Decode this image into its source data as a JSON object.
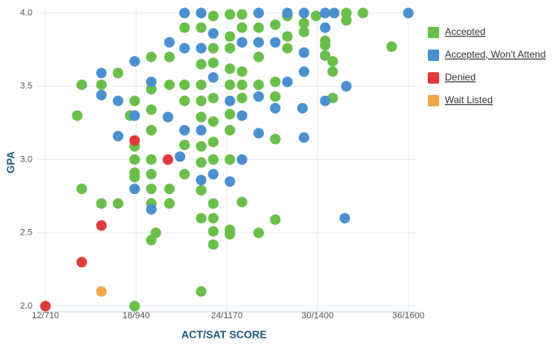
{
  "chart_data": {
    "type": "scatter",
    "x_label": "ACT/SAT SCORE",
    "y_label": "GPA",
    "xlim": [
      12,
      36
    ],
    "ylim": [
      2,
      4
    ],
    "xticks": [
      {
        "value": 12,
        "label": "12/710"
      },
      {
        "value": 18,
        "label": "18/940"
      },
      {
        "value": 24,
        "label": "24/1170"
      },
      {
        "value": 30,
        "label": "30/1400"
      },
      {
        "value": 36,
        "label": "36/1600"
      }
    ],
    "yticks": [
      {
        "value": 2,
        "label": "2.0"
      },
      2.5,
      {
        "value": 3,
        "label": "3.0"
      },
      3.5,
      {
        "value": 4,
        "label": "4.0"
      }
    ],
    "grid": true,
    "legend": "right",
    "series": [
      {
        "name": "Accepted",
        "color": "#6abf4b",
        "x": [
          34.9,
          33,
          31.9,
          31.9,
          31,
          31,
          31,
          30.5,
          30.5,
          30.5,
          29.9,
          29.1,
          29.1,
          28,
          28,
          28,
          27.2,
          27.2,
          27.2,
          27.2,
          27.2,
          26.1,
          26.1,
          26.1,
          26.1,
          25,
          25,
          25,
          25,
          25,
          25,
          24.2,
          24.2,
          24.2,
          24.2,
          24.2,
          24.2,
          24.2,
          24.2,
          24.2,
          24.2,
          23.1,
          23.1,
          23.1,
          23.1,
          23.1,
          23.1,
          23.1,
          23.1,
          23.1,
          23.1,
          23.1,
          22.3,
          22.3,
          22.3,
          22.3,
          22.3,
          22.3,
          22.3,
          22.3,
          22.3,
          22.3,
          21.2,
          21.2,
          21.2,
          21.2,
          21.2,
          20.2,
          20.2,
          20.2,
          20.2,
          19,
          19,
          19,
          19,
          19,
          19,
          19,
          19,
          19,
          19.3,
          17.9,
          17.9,
          17.9,
          17.9,
          17.9,
          17.9,
          17.6,
          16.8,
          16.8,
          15.7,
          15.7,
          14.4,
          14.4,
          14.1
        ],
        "values": [
          3.77,
          4,
          4,
          3.95,
          3.67,
          3.6,
          3.42,
          3.78,
          3.71,
          3.81,
          3.98,
          3.87,
          3.93,
          3.84,
          3.76,
          3.98,
          3.92,
          3.53,
          3.43,
          3.14,
          2.59,
          3.9,
          3.7,
          3.51,
          2.5,
          3.99,
          3.9,
          3.6,
          3.51,
          3.42,
          2.71,
          3.99,
          3.84,
          3.76,
          3.62,
          3.51,
          3.31,
          3.2,
          3,
          2.52,
          2.49,
          3.98,
          3.76,
          3.66,
          3.42,
          3.26,
          3.12,
          3,
          2.7,
          2.6,
          2.51,
          2.42,
          3.9,
          3.65,
          3.51,
          3.4,
          3.29,
          3.09,
          2.98,
          2.79,
          2.6,
          2.1,
          3.9,
          3.51,
          3.4,
          3.1,
          2.9,
          3.7,
          3.51,
          2.8,
          2.7,
          3.7,
          3.48,
          3.34,
          3.2,
          3,
          2.9,
          2.8,
          2.7,
          2.45,
          2.5,
          3.4,
          3.09,
          3,
          2.91,
          2.88,
          2,
          3.3,
          3.59,
          2.7,
          3.51,
          2.7,
          3.51,
          2.8,
          3.3
        ]
      },
      {
        "name": "Accepted, Won't Attend",
        "color": "#4a90d0",
        "x": [
          36,
          31.8,
          31.9,
          30.5,
          29.1,
          29,
          29.1,
          29.1,
          28,
          27.2,
          27.2,
          26.1,
          26.1,
          26.1,
          26.1,
          25,
          25,
          25,
          24.2,
          24.2,
          23.1,
          23.1,
          23.1,
          22.3,
          22.3,
          22.3,
          22.3,
          21.2,
          21.2,
          21.2,
          20.9,
          20.2,
          20.1,
          19,
          19,
          17.9,
          17.9,
          17.9,
          16.8,
          16.8,
          15.7,
          15.7,
          30.5,
          30.5,
          29.1,
          28,
          31.1
        ],
        "values": [
          4,
          2.6,
          3.5,
          3.4,
          3.15,
          3.35,
          3.6,
          3.73,
          3.53,
          3.8,
          3.35,
          4,
          3.8,
          3.43,
          3.18,
          3.8,
          3.3,
          3,
          3.4,
          2.85,
          3.86,
          3.56,
          2.9,
          4,
          3.76,
          3.2,
          2.86,
          4,
          3.76,
          3.2,
          3.02,
          3.8,
          3.29,
          3.53,
          2.66,
          3.67,
          3.3,
          2.8,
          3.4,
          3.16,
          3.59,
          3.44,
          4,
          3.9,
          4,
          4,
          4
        ]
      },
      {
        "name": "Denied",
        "color": "#e03a3a",
        "x": [
          12,
          14.4,
          15.7,
          17.9,
          20.1
        ],
        "values": [
          2,
          2.3,
          2.55,
          3.13,
          3
        ]
      },
      {
        "name": "Wait Listed",
        "color": "#f0a64a",
        "x": [
          15.7
        ],
        "values": [
          2.1
        ]
      }
    ]
  }
}
